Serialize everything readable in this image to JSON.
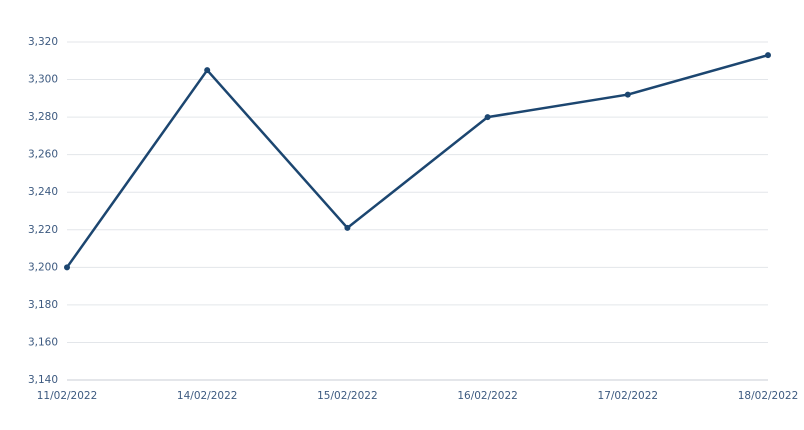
{
  "chart_data": {
    "type": "line",
    "categories": [
      "11/02/2022",
      "14/02/2022",
      "15/02/2022",
      "16/02/2022",
      "17/02/2022",
      "18/02/2022"
    ],
    "series": [
      {
        "color": "#1c4670",
        "values": [
          3200,
          3305,
          3221,
          3280,
          3292,
          3313
        ]
      }
    ],
    "ylim": [
      3140,
      3320
    ],
    "yticks": [
      {
        "value": 3140,
        "label": "3,140"
      },
      {
        "value": 3160,
        "label": "3,160"
      },
      {
        "value": 3180,
        "label": "3,180"
      },
      {
        "value": 3200,
        "label": "3,200"
      },
      {
        "value": 3220,
        "label": "3,220"
      },
      {
        "value": 3240,
        "label": "3,240"
      },
      {
        "value": 3260,
        "label": "3,260"
      },
      {
        "value": 3280,
        "label": "3,280"
      },
      {
        "value": 3300,
        "label": "3,300"
      },
      {
        "value": 3320,
        "label": "3,320"
      }
    ],
    "grid": true
  }
}
